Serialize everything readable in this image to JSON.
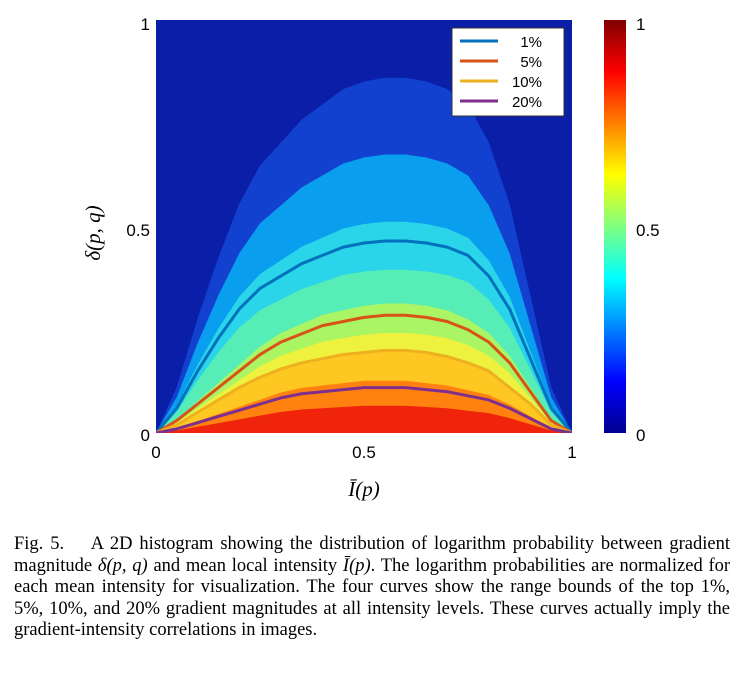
{
  "chart_data": {
    "type": "heatmap",
    "title": "",
    "xlabel": "Ī(p)",
    "ylabel": "δ(p, q)",
    "xlim": [
      0,
      1
    ],
    "ylim": [
      0,
      1
    ],
    "x_ticks": [
      "0",
      "0.5",
      "1"
    ],
    "y_ticks": [
      "0",
      "0.5",
      "1"
    ],
    "colorbar": {
      "range": [
        0,
        1
      ],
      "ticks": [
        "0",
        "0.5",
        "1"
      ],
      "colormap": "jet"
    },
    "legend_position": "top-right",
    "series": [
      {
        "name": "1%",
        "color": "#0072bd",
        "x": [
          0,
          0.05,
          0.1,
          0.15,
          0.2,
          0.25,
          0.3,
          0.35,
          0.4,
          0.45,
          0.5,
          0.55,
          0.6,
          0.65,
          0.7,
          0.75,
          0.8,
          0.85,
          0.9,
          0.95,
          1
        ],
        "y": [
          0,
          0.06,
          0.15,
          0.23,
          0.3,
          0.35,
          0.38,
          0.41,
          0.43,
          0.45,
          0.46,
          0.465,
          0.465,
          0.46,
          0.45,
          0.43,
          0.38,
          0.3,
          0.18,
          0.06,
          0
        ]
      },
      {
        "name": "5%",
        "color": "#d95319",
        "x": [
          0,
          0.05,
          0.1,
          0.15,
          0.2,
          0.25,
          0.3,
          0.35,
          0.4,
          0.45,
          0.5,
          0.55,
          0.6,
          0.65,
          0.7,
          0.75,
          0.8,
          0.85,
          0.9,
          0.95,
          1
        ],
        "y": [
          0,
          0.03,
          0.07,
          0.11,
          0.15,
          0.19,
          0.22,
          0.24,
          0.26,
          0.27,
          0.28,
          0.285,
          0.285,
          0.28,
          0.27,
          0.25,
          0.22,
          0.17,
          0.1,
          0.03,
          0
        ]
      },
      {
        "name": "10%",
        "color": "#edb120",
        "x": [
          0,
          0.05,
          0.1,
          0.15,
          0.2,
          0.25,
          0.3,
          0.35,
          0.4,
          0.45,
          0.5,
          0.55,
          0.6,
          0.65,
          0.7,
          0.75,
          0.8,
          0.85,
          0.9,
          0.95,
          1
        ],
        "y": [
          0,
          0.02,
          0.05,
          0.08,
          0.11,
          0.135,
          0.155,
          0.17,
          0.18,
          0.19,
          0.195,
          0.2,
          0.2,
          0.195,
          0.185,
          0.17,
          0.15,
          0.11,
          0.07,
          0.02,
          0
        ]
      },
      {
        "name": "20%",
        "color": "#7e2f8e",
        "x": [
          0,
          0.05,
          0.1,
          0.15,
          0.2,
          0.25,
          0.3,
          0.35,
          0.4,
          0.45,
          0.5,
          0.55,
          0.6,
          0.65,
          0.7,
          0.75,
          0.8,
          0.85,
          0.9,
          0.95,
          1
        ],
        "y": [
          0,
          0.01,
          0.025,
          0.04,
          0.055,
          0.07,
          0.085,
          0.095,
          0.1,
          0.105,
          0.11,
          0.11,
          0.11,
          0.105,
          0.1,
          0.09,
          0.08,
          0.06,
          0.035,
          0.01,
          0
        ]
      }
    ]
  },
  "caption": {
    "label": "Fig. 5.",
    "text_1": "A 2D histogram showing the distribution of logarithm probability between gradient magnitude",
    "symbol_delta": "δ(p, q)",
    "text_2": "and mean local intensity",
    "symbol_intensity": "Ī(p)",
    "text_3": ". The logarithm probabilities are normalized for each mean intensity for visualization. The four curves show the range bounds of the top 1%, 5%, 10%, and 20% gradient magnitudes at all intensity levels. These curves actually imply the gradient-intensity correlations in images."
  }
}
